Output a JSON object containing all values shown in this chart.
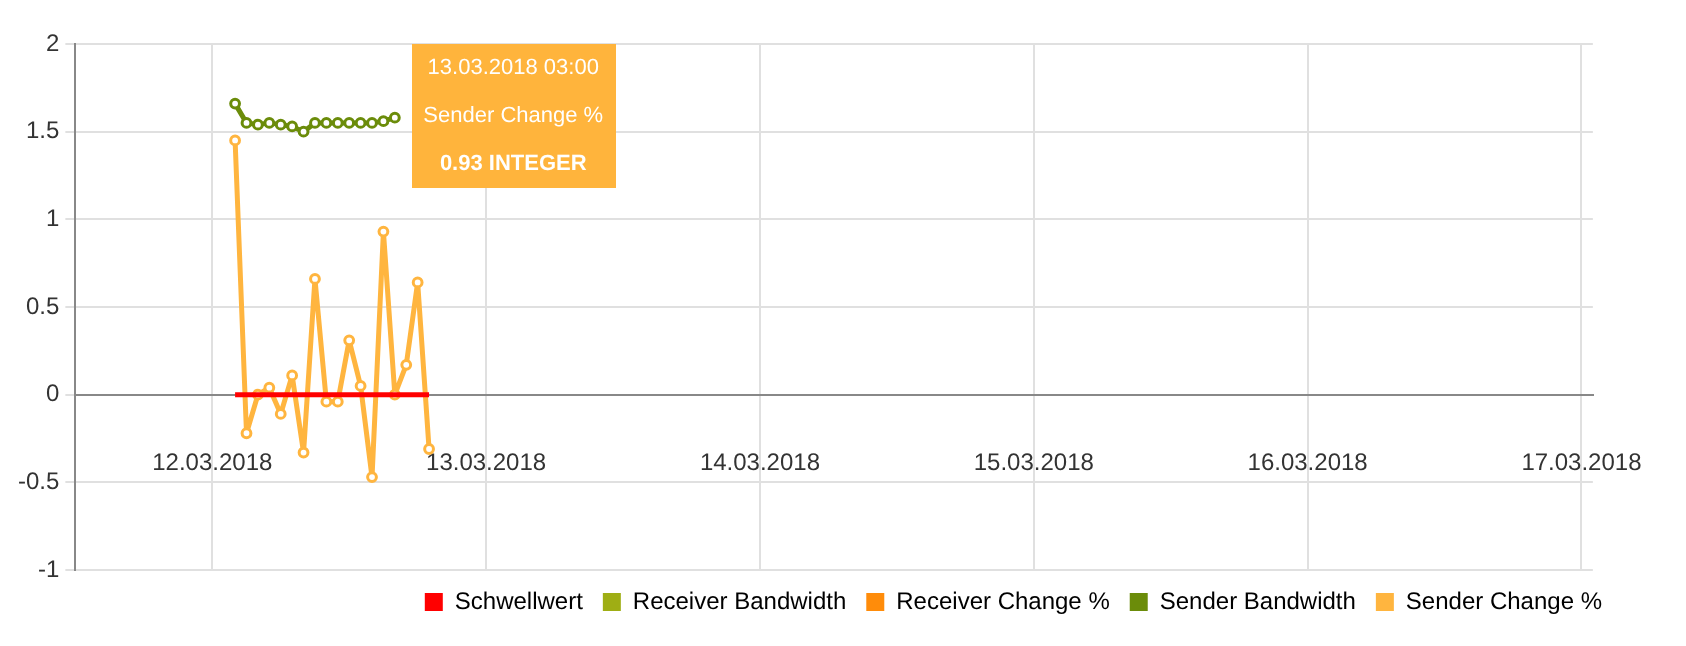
{
  "chart_data": {
    "type": "line",
    "x": [
      "2018-03-12T02:00",
      "2018-03-12T03:00",
      "2018-03-12T04:00",
      "2018-03-12T05:00",
      "2018-03-12T06:00",
      "2018-03-12T07:00",
      "2018-03-12T08:00",
      "2018-03-12T09:00",
      "2018-03-12T10:00",
      "2018-03-12T11:00",
      "2018-03-12T12:00",
      "2018-03-12T13:00",
      "2018-03-12T14:00",
      "2018-03-12T15:00",
      "2018-03-12T16:00",
      "2018-03-12T17:00",
      "2018-03-12T18:00",
      "2018-03-12T19:00"
    ],
    "series": [
      {
        "name": "Schwellwert",
        "color": "#ff0000",
        "marker": "none",
        "values": [
          0,
          0,
          0,
          0,
          0,
          0,
          0,
          0,
          0,
          0,
          0,
          0,
          0,
          0,
          0,
          0,
          0,
          0
        ]
      },
      {
        "name": "Receiver Bandwidth",
        "color": "#9fae14",
        "marker": "circle",
        "values": [
          null,
          null,
          null,
          null,
          null,
          null,
          null,
          null,
          null,
          null,
          null,
          null,
          null,
          null,
          null,
          null,
          null,
          null
        ]
      },
      {
        "name": "Receiver Change %",
        "color": "#ff8c0a",
        "marker": "circle",
        "values": [
          null,
          null,
          null,
          null,
          null,
          null,
          null,
          null,
          null,
          null,
          null,
          null,
          null,
          null,
          null,
          null,
          null,
          null
        ]
      },
      {
        "name": "Sender Bandwidth",
        "color": "#6b8c0a",
        "marker": "circle",
        "values": [
          1.66,
          1.55,
          1.54,
          1.55,
          1.54,
          1.53,
          1.5,
          1.55,
          1.55,
          1.55,
          1.55,
          1.55,
          1.55,
          1.56,
          1.58,
          null,
          null,
          null
        ]
      },
      {
        "name": "Sender Change %",
        "color": "#ffb53f",
        "marker": "circle",
        "values": [
          1.45,
          -0.22,
          0,
          0.04,
          -0.11,
          0.11,
          -0.33,
          0.66,
          -0.04,
          -0.04,
          0.31,
          0.05,
          -0.47,
          0.93,
          0,
          0.17,
          0.64,
          -0.31
        ]
      }
    ],
    "xlim": [
      "2018-03-11T12:00",
      "2018-03-17T01:00"
    ],
    "xticks": [
      {
        "value": "2018-03-12",
        "label": "12.03.2018"
      },
      {
        "value": "2018-03-13",
        "label": "13.03.2018"
      },
      {
        "value": "2018-03-14",
        "label": "14.03.2018"
      },
      {
        "value": "2018-03-15",
        "label": "15.03.2018"
      },
      {
        "value": "2018-03-16",
        "label": "16.03.2018"
      },
      {
        "value": "2018-03-17",
        "label": "17.03.2018"
      }
    ],
    "ylim": [
      -1,
      2
    ],
    "yticks": [
      -1,
      -0.5,
      0,
      0.5,
      1,
      1.5,
      2
    ],
    "grid": true,
    "legend": "bottom right",
    "annotations": [
      "13.03.2018 03:00",
      "Sender Change %",
      "0.93 INTEGER"
    ]
  }
}
